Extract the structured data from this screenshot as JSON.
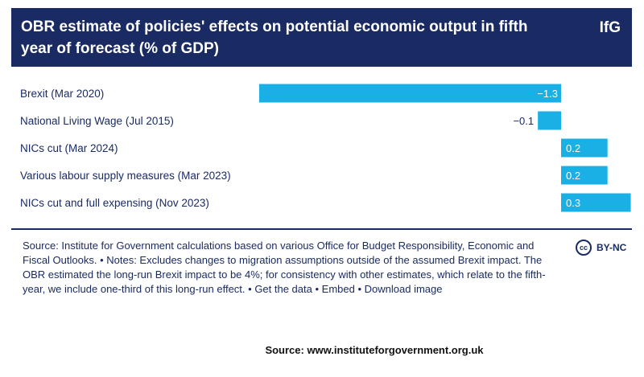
{
  "header": {
    "title": "OBR estimate of policies' effects on potential economic output in fifth year of forecast (% of GDP)",
    "logo": "IfG"
  },
  "colors": {
    "header_bg": "#1a2b63",
    "bar": "#1ab0e6",
    "text": "#1a2b63"
  },
  "chart_data": {
    "type": "bar",
    "orientation": "horizontal",
    "title": "OBR estimate of policies' effects on potential economic output in fifth year of forecast (% of GDP)",
    "categories": [
      "Brexit (Mar 2020)",
      "National Living Wage (Jul 2015)",
      "NICs cut (Mar 2024)",
      "Various labour supply measures (Mar 2023)",
      "NICs cut and full expensing (Nov 2023)"
    ],
    "values": [
      -1.3,
      -0.1,
      0.2,
      0.2,
      0.3
    ],
    "value_labels": [
      "−1.3",
      "−0.1",
      "0.2",
      "0.2",
      "0.3"
    ],
    "xlim": [
      -1.3,
      0.3
    ],
    "grid": false,
    "legend": "none"
  },
  "source_block": {
    "text": "Source: Institute for Government calculations based on various Office for Budget Responsibility, Economic and Fiscal Outlooks. • Notes: Excludes changes to migration assumptions outside of the assumed Brexit impact. The OBR estimated the long-run Brexit impact to be 4%; for consistency with other estimates, which relate to the fifth-year, we include one-third of this long-run effect. • ",
    "links": [
      "Get the data",
      "Embed",
      "Download image"
    ],
    "separator": " • "
  },
  "license": {
    "icon_text": "cc",
    "label": "BY-NC"
  },
  "footer": {
    "source": "Source: www.instituteforgovernment.org.uk"
  }
}
